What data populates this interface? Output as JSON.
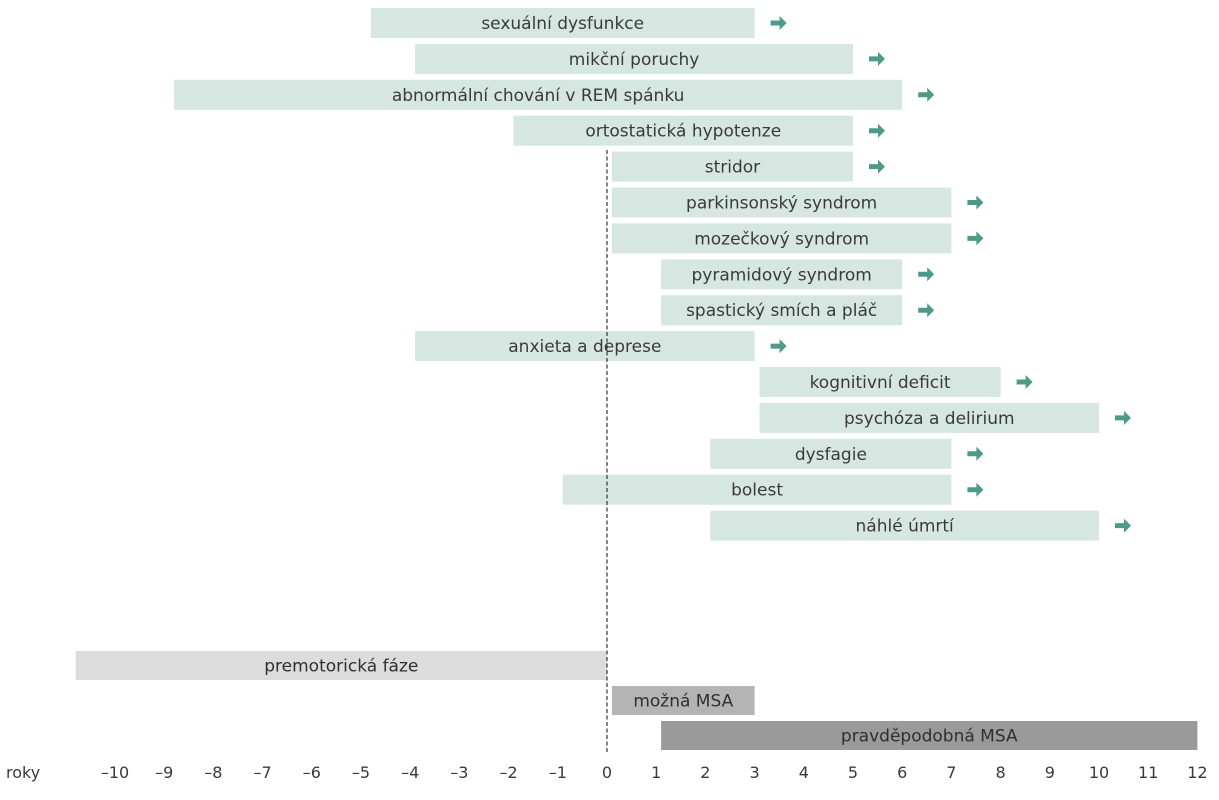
{
  "chart_data": {
    "type": "bar",
    "subtype": "horizontal-range-timeline",
    "title": "",
    "xlabel": "roky",
    "ylabel": "",
    "xlim": [
      -11,
      12
    ],
    "xticks": [
      -10,
      -9,
      -8,
      -7,
      -6,
      -5,
      -4,
      -3,
      -2,
      -1,
      0,
      1,
      2,
      3,
      4,
      5,
      6,
      7,
      8,
      9,
      10,
      11,
      12
    ],
    "xtick_labels": [
      "–10",
      "–9",
      "–8",
      "–7",
      "–6",
      "–5",
      "–4",
      "–3",
      "–2",
      "–1",
      "0",
      "1",
      "2",
      "3",
      "4",
      "5",
      "6",
      "7",
      "8",
      "9",
      "10",
      "11",
      "12"
    ],
    "zero_line": "dashed",
    "grid": false,
    "colors": {
      "symptom": "#d6e7e2",
      "arrow": "#4e9a8a",
      "premotor": "#dcdcdc",
      "possible": "#b4b4b4",
      "probable": "#9a9a9a",
      "zero_line": "#333333"
    },
    "symptoms": [
      {
        "label": "sexuální dysfunkce",
        "start": -4.8,
        "end": 3.0,
        "continues": true
      },
      {
        "label": "mikční poruchy",
        "start": -3.9,
        "end": 5.0,
        "continues": true
      },
      {
        "label": "abnormální chování v REM spánku",
        "start": -8.8,
        "end": 6.0,
        "continues": true
      },
      {
        "label": "ortostatická hypotenze",
        "start": -1.9,
        "end": 5.0,
        "continues": true
      },
      {
        "label": "stridor",
        "start": 0.1,
        "end": 5.0,
        "continues": true
      },
      {
        "label": "parkinsonský syndrom",
        "start": 0.1,
        "end": 7.0,
        "continues": true
      },
      {
        "label": "mozečkový syndrom",
        "start": 0.1,
        "end": 7.0,
        "continues": true
      },
      {
        "label": "pyramidový syndrom",
        "start": 1.1,
        "end": 6.0,
        "continues": true
      },
      {
        "label": "spastický smích a pláč",
        "start": 1.1,
        "end": 6.0,
        "continues": true
      },
      {
        "label": "anxieta a deprese",
        "start": -3.9,
        "end": 3.0,
        "continues": true
      },
      {
        "label": "kognitivní deficit",
        "start": 3.1,
        "end": 8.0,
        "continues": true
      },
      {
        "label": "psychóza a delirium",
        "start": 3.1,
        "end": 10.0,
        "continues": true
      },
      {
        "label": "dysfagie",
        "start": 2.1,
        "end": 7.0,
        "continues": true
      },
      {
        "label": "bolest",
        "start": -0.9,
        "end": 7.0,
        "continues": true
      },
      {
        "label": "náhlé úmrtí",
        "start": 2.1,
        "end": 10.0,
        "continues": true
      }
    ],
    "phases": [
      {
        "label": "premotorická fáze",
        "start": -10.8,
        "end": 0.0,
        "style": "premotor"
      },
      {
        "label": "možná MSA",
        "start": 0.1,
        "end": 3.0,
        "style": "possible"
      },
      {
        "label": "pravděpodobná MSA",
        "start": 1.1,
        "end": 12.0,
        "style": "probable"
      }
    ]
  }
}
